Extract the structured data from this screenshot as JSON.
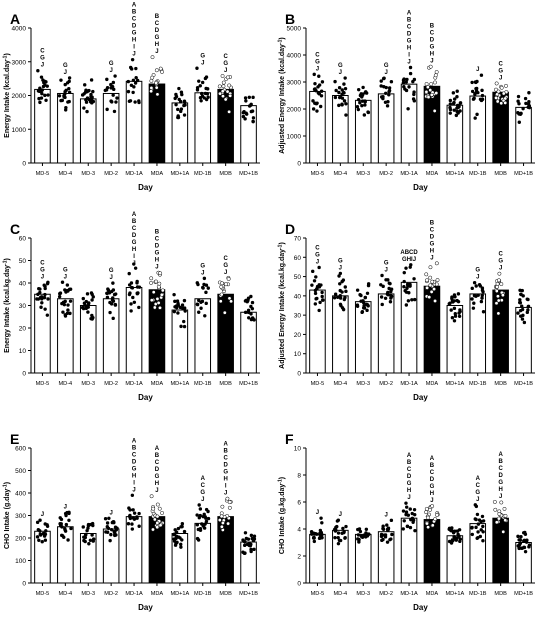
{
  "chart_data": [
    {
      "type": "bar",
      "panel_letter": "A",
      "ylabel": "Energy Intake (kcal.day",
      "ylabel_sup": "-1",
      "ylabel_end": ")",
      "xlabel": "Day",
      "ylim": [
        0,
        4000
      ],
      "yticks": [
        "0",
        "1000",
        "2000",
        "3000",
        "4000"
      ],
      "categories": [
        "MD-5",
        "MD-4",
        "MD-3",
        "MD-2",
        "MD-1A",
        "MDA",
        "MD+1A",
        "MD-1B",
        "MDB",
        "MD+1B"
      ],
      "values": [
        2180,
        2060,
        1900,
        2060,
        2420,
        2340,
        1780,
        2080,
        2180,
        1700
      ],
      "filled": [
        false,
        false,
        false,
        false,
        false,
        true,
        false,
        false,
        true,
        false
      ],
      "annotations": [
        "CGJ",
        "GJ",
        "",
        "GJ",
        "ABCDGHIJ",
        "BCDGHJ",
        "",
        "GJ",
        "CGJ",
        ""
      ]
    },
    {
      "type": "bar",
      "panel_letter": "B",
      "ylabel": "Adjusted Energy Intake (kcal.day",
      "ylabel_sup": "-1",
      "ylabel_end": ")",
      "xlabel": "Day",
      "ylim": [
        0,
        5000
      ],
      "yticks": [
        "0",
        "1000",
        "2000",
        "3000",
        "4000",
        "5000"
      ],
      "categories": [
        "MD-5",
        "MD-4",
        "MD-3",
        "MD-2",
        "MD-1A",
        "MDA",
        "MD+1A",
        "MD-1B",
        "MDB",
        "MD+1B"
      ],
      "values": [
        2650,
        2500,
        2320,
        2560,
        2920,
        2840,
        2140,
        2480,
        2620,
        2060
      ],
      "filled": [
        false,
        false,
        false,
        false,
        false,
        true,
        false,
        false,
        true,
        false
      ],
      "annotations": [
        "CGJ",
        "GJ",
        "",
        "GJ",
        "ABCDGHIJ",
        "BCDGHJ",
        "",
        "J",
        "CGJ",
        ""
      ]
    },
    {
      "type": "bar",
      "panel_letter": "C",
      "ylabel": "Energy Intake (kcal.kg.day",
      "ylabel_sup": "-1",
      "ylabel_end": ")",
      "xlabel": "Day",
      "ylim": [
        0,
        60
      ],
      "yticks": [
        "0",
        "10",
        "20",
        "30",
        "40",
        "50",
        "60"
      ],
      "categories": [
        "MD-5",
        "MD-4",
        "MD-3",
        "MD-2",
        "MD-1A",
        "MDA",
        "MD+1A",
        "MD-1B",
        "MDB",
        "MD+1B"
      ],
      "values": [
        35,
        33,
        30,
        33,
        38,
        37,
        28,
        33,
        35,
        27
      ],
      "filled": [
        false,
        false,
        false,
        false,
        false,
        true,
        false,
        false,
        true,
        false
      ],
      "annotations": [
        "CGJ",
        "GJ",
        "",
        "GJ",
        "ABCDGHIJ",
        "BCDGHJ",
        "",
        "GJ",
        "CGJ",
        ""
      ]
    },
    {
      "type": "bar",
      "panel_letter": "D",
      "ylabel": "Adjusted Energy Intake (kcal.kg.day",
      "ylabel_sup": "-1",
      "ylabel_end": ")",
      "xlabel": "Day",
      "ylim": [
        0,
        70
      ],
      "yticks": [
        "0",
        "10",
        "20",
        "30",
        "40",
        "50",
        "60",
        "70"
      ],
      "categories": [
        "MD-5",
        "MD-4",
        "MD-3",
        "MD-2",
        "MD-1A",
        "MDA",
        "MD+1A",
        "MD-1B",
        "MDB",
        "MD+1B"
      ],
      "values": [
        43,
        40,
        37,
        41,
        47,
        45,
        35,
        41,
        43,
        34
      ],
      "filled": [
        false,
        false,
        false,
        false,
        false,
        true,
        false,
        false,
        true,
        false
      ],
      "annotations": [
        "CGJ",
        "GJ",
        "",
        "GJ",
        "ABCD|GHIJ",
        "BCDGHJ",
        "",
        "GJ",
        "CGJ",
        ""
      ]
    },
    {
      "type": "bar",
      "panel_letter": "E",
      "ylabel": "CHO Intake (g.day",
      "ylabel_sup": "-1",
      "ylabel_end": ")",
      "xlabel": "Day",
      "ylim": [
        0,
        600
      ],
      "yticks": [
        "0",
        "100",
        "200",
        "300",
        "400",
        "500",
        "600"
      ],
      "categories": [
        "MD-5",
        "MD-4",
        "MD-3",
        "MD-2",
        "MD-1A",
        "MDA",
        "MD+1A",
        "MD-1B",
        "MDB",
        "MD+1B"
      ],
      "values": [
        230,
        250,
        220,
        240,
        295,
        295,
        220,
        265,
        295,
        182
      ],
      "filled": [
        false,
        false,
        false,
        false,
        false,
        true,
        false,
        false,
        true,
        false
      ],
      "annotations": [
        "J",
        "J",
        "",
        "J",
        "ABCDGHIJ",
        "ABCDGHJ",
        "",
        "ACGJ",
        "ABCDGHIJ",
        ""
      ]
    },
    {
      "type": "bar",
      "panel_letter": "F",
      "ylabel": "CHO Intake (g.kg.day",
      "ylabel_sup": "-1",
      "ylabel_end": ")",
      "xlabel": "Day",
      "ylim": [
        0,
        10
      ],
      "yticks": [
        "0",
        "2",
        "4",
        "6",
        "8",
        "10"
      ],
      "categories": [
        "MD-5",
        "MD-4",
        "MD-3",
        "MD-2",
        "MD-1A",
        "MDA",
        "MD+1A",
        "MD-1B",
        "MDB",
        "MD+1B"
      ],
      "values": [
        3.6,
        3.9,
        3.6,
        3.8,
        4.8,
        4.7,
        3.5,
        4.4,
        4.8,
        3.0
      ],
      "filled": [
        false,
        false,
        false,
        false,
        false,
        true,
        false,
        false,
        true,
        false
      ],
      "annotations": [
        "J",
        "J",
        "",
        "J",
        "ABCDGHJ",
        "ABCDGHJ",
        "",
        "ACGJ",
        "ABCDGHJ",
        ""
      ]
    }
  ]
}
